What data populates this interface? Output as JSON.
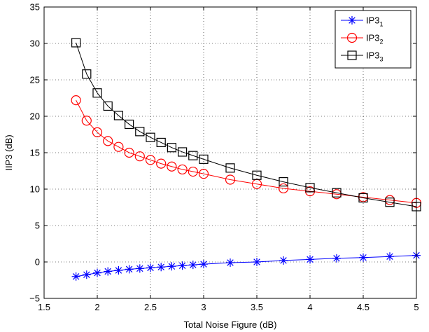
{
  "chart_data": {
    "type": "line",
    "title": "",
    "xlabel": "Total Noise Figure (dB)",
    "ylabel": "IIP3 (dB)",
    "xlim": [
      1.5,
      5
    ],
    "ylim": [
      -5,
      35
    ],
    "xticks": [
      1.5,
      2,
      2.5,
      3,
      3.5,
      4,
      4.5,
      5
    ],
    "xtick_labels": [
      "1.5",
      "2",
      "2.5",
      "3",
      "3.5",
      "4",
      "4.5",
      "5"
    ],
    "yticks": [
      -5,
      0,
      5,
      10,
      15,
      20,
      25,
      30,
      35
    ],
    "ytick_labels": [
      "−5",
      "0",
      "5",
      "10",
      "15",
      "20",
      "25",
      "30",
      "35"
    ],
    "grid": true,
    "legend_position": "top-right",
    "series": [
      {
        "name_base": "IP3",
        "name_sub": "1",
        "color": "#0000ff",
        "marker": "asterisk",
        "x": [
          1.8,
          1.9,
          2.0,
          2.1,
          2.2,
          2.3,
          2.4,
          2.5,
          2.6,
          2.7,
          2.8,
          2.9,
          3.0,
          3.25,
          3.5,
          3.75,
          4.0,
          4.25,
          4.5,
          4.75,
          5.0
        ],
        "y": [
          -2.0,
          -1.75,
          -1.5,
          -1.3,
          -1.15,
          -1.0,
          -0.9,
          -0.8,
          -0.7,
          -0.6,
          -0.5,
          -0.4,
          -0.3,
          -0.1,
          0.0,
          0.2,
          0.35,
          0.5,
          0.6,
          0.75,
          0.9
        ]
      },
      {
        "name_base": "IP3",
        "name_sub": "2",
        "color": "#ff0000",
        "marker": "circle",
        "x": [
          1.8,
          1.9,
          2.0,
          2.1,
          2.2,
          2.3,
          2.4,
          2.5,
          2.6,
          2.7,
          2.8,
          2.9,
          3.0,
          3.25,
          3.5,
          3.75,
          4.0,
          4.25,
          4.5,
          4.75,
          5.0
        ],
        "y": [
          22.2,
          19.4,
          17.8,
          16.6,
          15.8,
          15.0,
          14.5,
          14.0,
          13.5,
          13.1,
          12.7,
          12.4,
          12.1,
          11.3,
          10.7,
          10.1,
          9.7,
          9.3,
          8.9,
          8.5,
          8.1
        ]
      },
      {
        "name_base": "IP3",
        "name_sub": "3",
        "color": "#000000",
        "marker": "square",
        "x": [
          1.8,
          1.9,
          2.0,
          2.1,
          2.2,
          2.3,
          2.4,
          2.5,
          2.6,
          2.7,
          2.8,
          2.9,
          3.0,
          3.25,
          3.5,
          3.75,
          4.0,
          4.25,
          4.5,
          4.75,
          5.0
        ],
        "y": [
          30.1,
          25.8,
          23.2,
          21.4,
          20.1,
          18.9,
          17.9,
          17.1,
          16.4,
          15.7,
          15.1,
          14.6,
          14.1,
          12.9,
          11.9,
          11.0,
          10.2,
          9.5,
          8.8,
          8.2,
          7.6
        ]
      }
    ]
  }
}
